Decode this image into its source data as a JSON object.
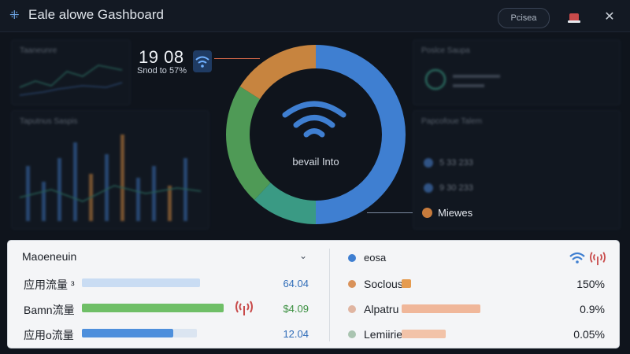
{
  "window": {
    "title": "Eale alowe Gashboard",
    "preview_button": "Pcisea",
    "app_icon": "grid-icon",
    "bell_icon": "bell-icon",
    "close_icon": "close-icon"
  },
  "background": {
    "panel_top_left_title": "Taaneunre",
    "panel_mid_left_title": "Taputnus Saspis",
    "panel_top_right_title": "Poslce Saupa",
    "panel_mid_right_title": "Papcofoue Talem",
    "right_legend": [
      {
        "label": "5 33 233",
        "color": "#4a84d6"
      },
      {
        "label": "9 30 233",
        "color": "#4a84d6"
      }
    ]
  },
  "overview": {
    "stat_value": "19 08",
    "stat_sub": "Snod to 57%",
    "center_label": "bevail Into",
    "callout_label": "Miewes",
    "wifi_icon": "wifi-icon"
  },
  "donut": {
    "segments": [
      {
        "name": "blue",
        "value": 50,
        "color": "#3f7fd1"
      },
      {
        "name": "teal",
        "value": 12,
        "color": "#3a9a84"
      },
      {
        "name": "green",
        "value": 22,
        "color": "#4f9a56"
      },
      {
        "name": "orange",
        "value": 16,
        "color": "#c7843f"
      }
    ]
  },
  "table": {
    "header_label": "Maoeneuin",
    "dropdown_icon": "chevron-down-icon",
    "left_rows": [
      {
        "label": "应用流量 ³",
        "value": "64.04",
        "color": "#2f6cb8",
        "bar_color": "#c9dcf3",
        "fill": 0.62
      },
      {
        "label": "Bamn流量",
        "value": "$4.09",
        "color": "#3a8f3f",
        "bar_color": "#6fbf67",
        "fill": 0.72
      },
      {
        "label": "应用o流量",
        "value": "12.04",
        "color": "#2f6cb8",
        "bar_color": "#4d8fdc",
        "fill": 0.45
      }
    ],
    "right_header": {
      "label": "eosa",
      "dot": "#3f7fd1"
    },
    "right_rows": [
      {
        "label": "Soclous",
        "pct": "150%",
        "dot": "#d9925a",
        "bar_color": "#e59b4f",
        "fill": 0.04
      },
      {
        "label": "Alpatru",
        "pct": "0.9%",
        "dot": "#e0b5a1",
        "bar_color": "#f0b79a",
        "fill": 0.55
      },
      {
        "label": "Lemiiries",
        "pct": "0.05%",
        "dot": "#a9c4b0",
        "bar_color": "#f2c3a8",
        "fill": 0.42
      }
    ]
  }
}
